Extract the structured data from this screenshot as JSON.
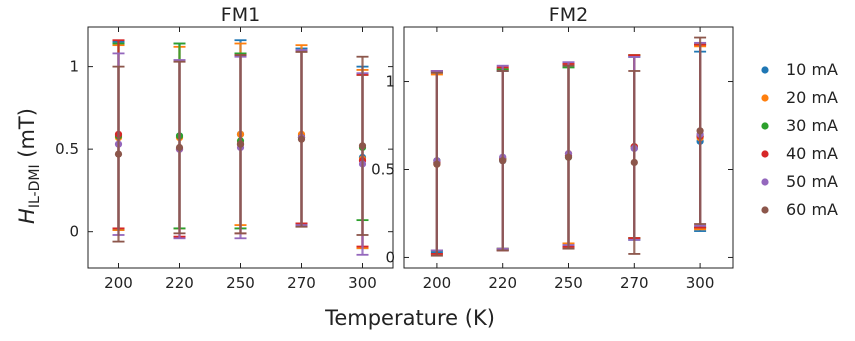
{
  "figure": {
    "xlabel": "Temperature (K)",
    "ylabel_main": "H",
    "ylabel_sub": "IL-DMI",
    "ylabel_unit": " (mT)"
  },
  "legend": [
    {
      "label": "10 mA",
      "color": "#1f77b4"
    },
    {
      "label": "20 mA",
      "color": "#ff7f0e"
    },
    {
      "label": "30 mA",
      "color": "#2ca02c"
    },
    {
      "label": "40 mA",
      "color": "#d62728"
    },
    {
      "label": "50 mA",
      "color": "#9467bd"
    },
    {
      "label": "60 mA",
      "color": "#8c564b"
    }
  ],
  "chart_data": [
    {
      "type": "scatter",
      "title": "FM1",
      "xlabel": "Temperature (K)",
      "ylabel": "H_IL-DMI (mT)",
      "categories": [
        "200",
        "220",
        "250",
        "270",
        "300"
      ],
      "ylim": [
        -0.22,
        1.24
      ],
      "yticks": [
        "0",
        "0.5",
        "1"
      ],
      "grid": false,
      "series": [
        {
          "name": "10 mA",
          "values": [
            0.58,
            0.58,
            0.59,
            0.58,
            0.45
          ],
          "errors": [
            0.57,
            0.56,
            0.57,
            0.53,
            0.55
          ]
        },
        {
          "name": "20 mA",
          "values": [
            0.57,
            0.57,
            0.59,
            0.59,
            0.44
          ],
          "errors": [
            0.56,
            0.55,
            0.55,
            0.54,
            0.54
          ]
        },
        {
          "name": "30 mA",
          "values": [
            0.58,
            0.58,
            0.55,
            0.57,
            0.51
          ],
          "errors": [
            0.56,
            0.56,
            0.53,
            0.52,
            0.44
          ]
        },
        {
          "name": "40 mA",
          "values": [
            0.59,
            0.5,
            0.53,
            0.57,
            0.43
          ],
          "errors": [
            0.57,
            0.53,
            0.54,
            0.52,
            0.52
          ]
        },
        {
          "name": "50 mA",
          "values": [
            0.53,
            0.5,
            0.51,
            0.57,
            0.41
          ],
          "errors": [
            0.55,
            0.54,
            0.55,
            0.53,
            0.55
          ]
        },
        {
          "name": "60 mA",
          "values": [
            0.47,
            0.51,
            0.53,
            0.56,
            0.52
          ],
          "errors": [
            0.53,
            0.52,
            0.54,
            0.53,
            0.54
          ]
        }
      ]
    },
    {
      "type": "scatter",
      "title": "FM2",
      "xlabel": "Temperature (K)",
      "ylabel": "",
      "categories": [
        "200",
        "220",
        "250",
        "270",
        "300"
      ],
      "ylim": [
        -0.06,
        1.31
      ],
      "yticks": [
        "0",
        "0.5",
        "1"
      ],
      "grid": false,
      "series": [
        {
          "name": "10 mA",
          "values": [
            0.54,
            0.55,
            0.58,
            0.62,
            0.66
          ],
          "errors": [
            0.51,
            0.51,
            0.51,
            0.52,
            0.51
          ]
        },
        {
          "name": "20 mA",
          "values": [
            0.53,
            0.56,
            0.59,
            0.63,
            0.68
          ],
          "errors": [
            0.51,
            0.51,
            0.51,
            0.52,
            0.52
          ]
        },
        {
          "name": "30 mA",
          "values": [
            0.55,
            0.56,
            0.57,
            0.63,
            0.69
          ],
          "errors": [
            0.51,
            0.51,
            0.51,
            0.52,
            0.52
          ]
        },
        {
          "name": "40 mA",
          "values": [
            0.54,
            0.56,
            0.58,
            0.63,
            0.69
          ],
          "errors": [
            0.52,
            0.52,
            0.52,
            0.52,
            0.52
          ]
        },
        {
          "name": "50 mA",
          "values": [
            0.55,
            0.57,
            0.59,
            0.62,
            0.7
          ],
          "errors": [
            0.51,
            0.52,
            0.52,
            0.52,
            0.52
          ]
        },
        {
          "name": "60 mA",
          "values": [
            0.53,
            0.55,
            0.57,
            0.54,
            0.72
          ],
          "errors": [
            0.52,
            0.51,
            0.52,
            0.52,
            0.53
          ]
        }
      ]
    }
  ]
}
